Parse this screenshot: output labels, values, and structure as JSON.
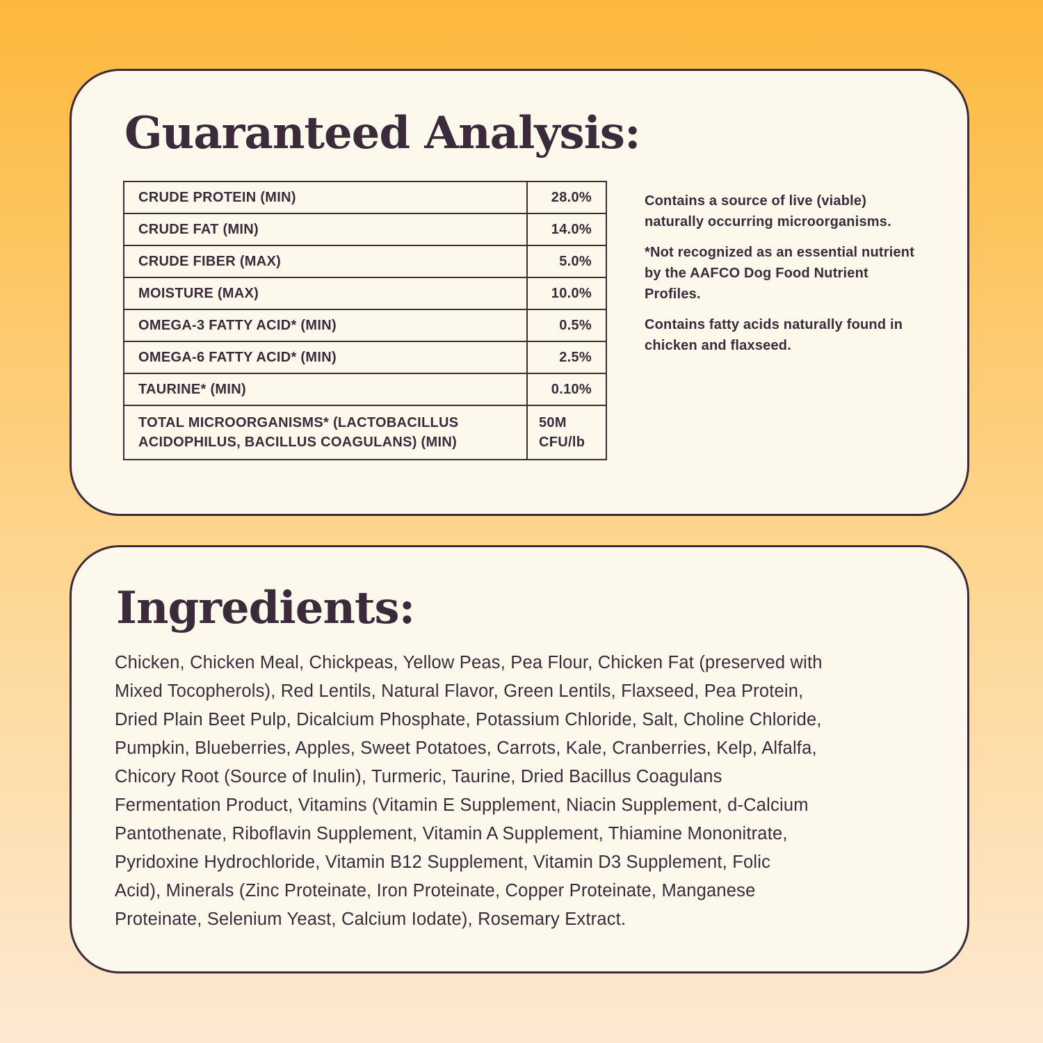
{
  "colors": {
    "background_top": "#fdb83c",
    "background_bottom": "#fde9d2",
    "card": "#fdf8ec",
    "text": "#3b2a3a"
  },
  "analysis": {
    "title": "Guaranteed Analysis:",
    "rows": [
      {
        "label": "CRUDE PROTEIN (MIN)",
        "value": "28.0%"
      },
      {
        "label": "CRUDE FAT (MIN)",
        "value": "14.0%"
      },
      {
        "label": "CRUDE FIBER (MAX)",
        "value": "5.0%"
      },
      {
        "label": "MOISTURE (MAX)",
        "value": "10.0%"
      },
      {
        "label": "OMEGA-3 FATTY ACID* (MIN)",
        "value": "0.5%"
      },
      {
        "label": "OMEGA-6 FATTY ACID* (MIN)",
        "value": "2.5%"
      },
      {
        "label": "TAURINE* (MIN)",
        "value": "0.10%"
      },
      {
        "label_line1": "TOTAL MICROORGANISMS* (LACTOBACILLUS",
        "label_line2": "ACIDOPHILUS, BACILLUS COAGULANS) (MIN)",
        "value_line1": "50M",
        "value_line2": "CFU/lb"
      }
    ],
    "notes": [
      "Contains a source of live (viable) naturally occurring microorganisms.",
      "*Not recognized as an essential nutrient by the AAFCO Dog Food Nutrient Profiles.",
      "Contains fatty acids naturally found in chicken and flaxseed."
    ]
  },
  "ingredients": {
    "title": "Ingredients:",
    "lines": [
      "Chicken, Chicken Meal, Chickpeas, Yellow Peas, Pea Flour, Chicken Fat (preserved with",
      "Mixed Tocopherols), Red Lentils, Natural Flavor, Green Lentils, Flaxseed, Pea Protein,",
      "Dried Plain Beet Pulp, Dicalcium Phosphate, Potassium Chloride, Salt, Choline Chloride,",
      "Pumpkin, Blueberries, Apples, Sweet Potatoes, Carrots, Kale, Cranberries, Kelp, Alfalfa,",
      "Chicory Root (Source of Inulin), Turmeric, Taurine, Dried Bacillus Coagulans",
      "Fermentation Product, Vitamins (Vitamin E Supplement, Niacin Supplement, d-Calcium",
      "Pantothenate, Riboflavin Supplement, Vitamin A Supplement, Thiamine Mononitrate,",
      "Pyridoxine Hydrochloride, Vitamin B12 Supplement, Vitamin D3 Supplement, Folic",
      "Acid), Minerals (Zinc Proteinate, Iron Proteinate, Copper Proteinate, Manganese",
      "Proteinate, Selenium Yeast, Calcium Iodate), Rosemary Extract."
    ]
  }
}
